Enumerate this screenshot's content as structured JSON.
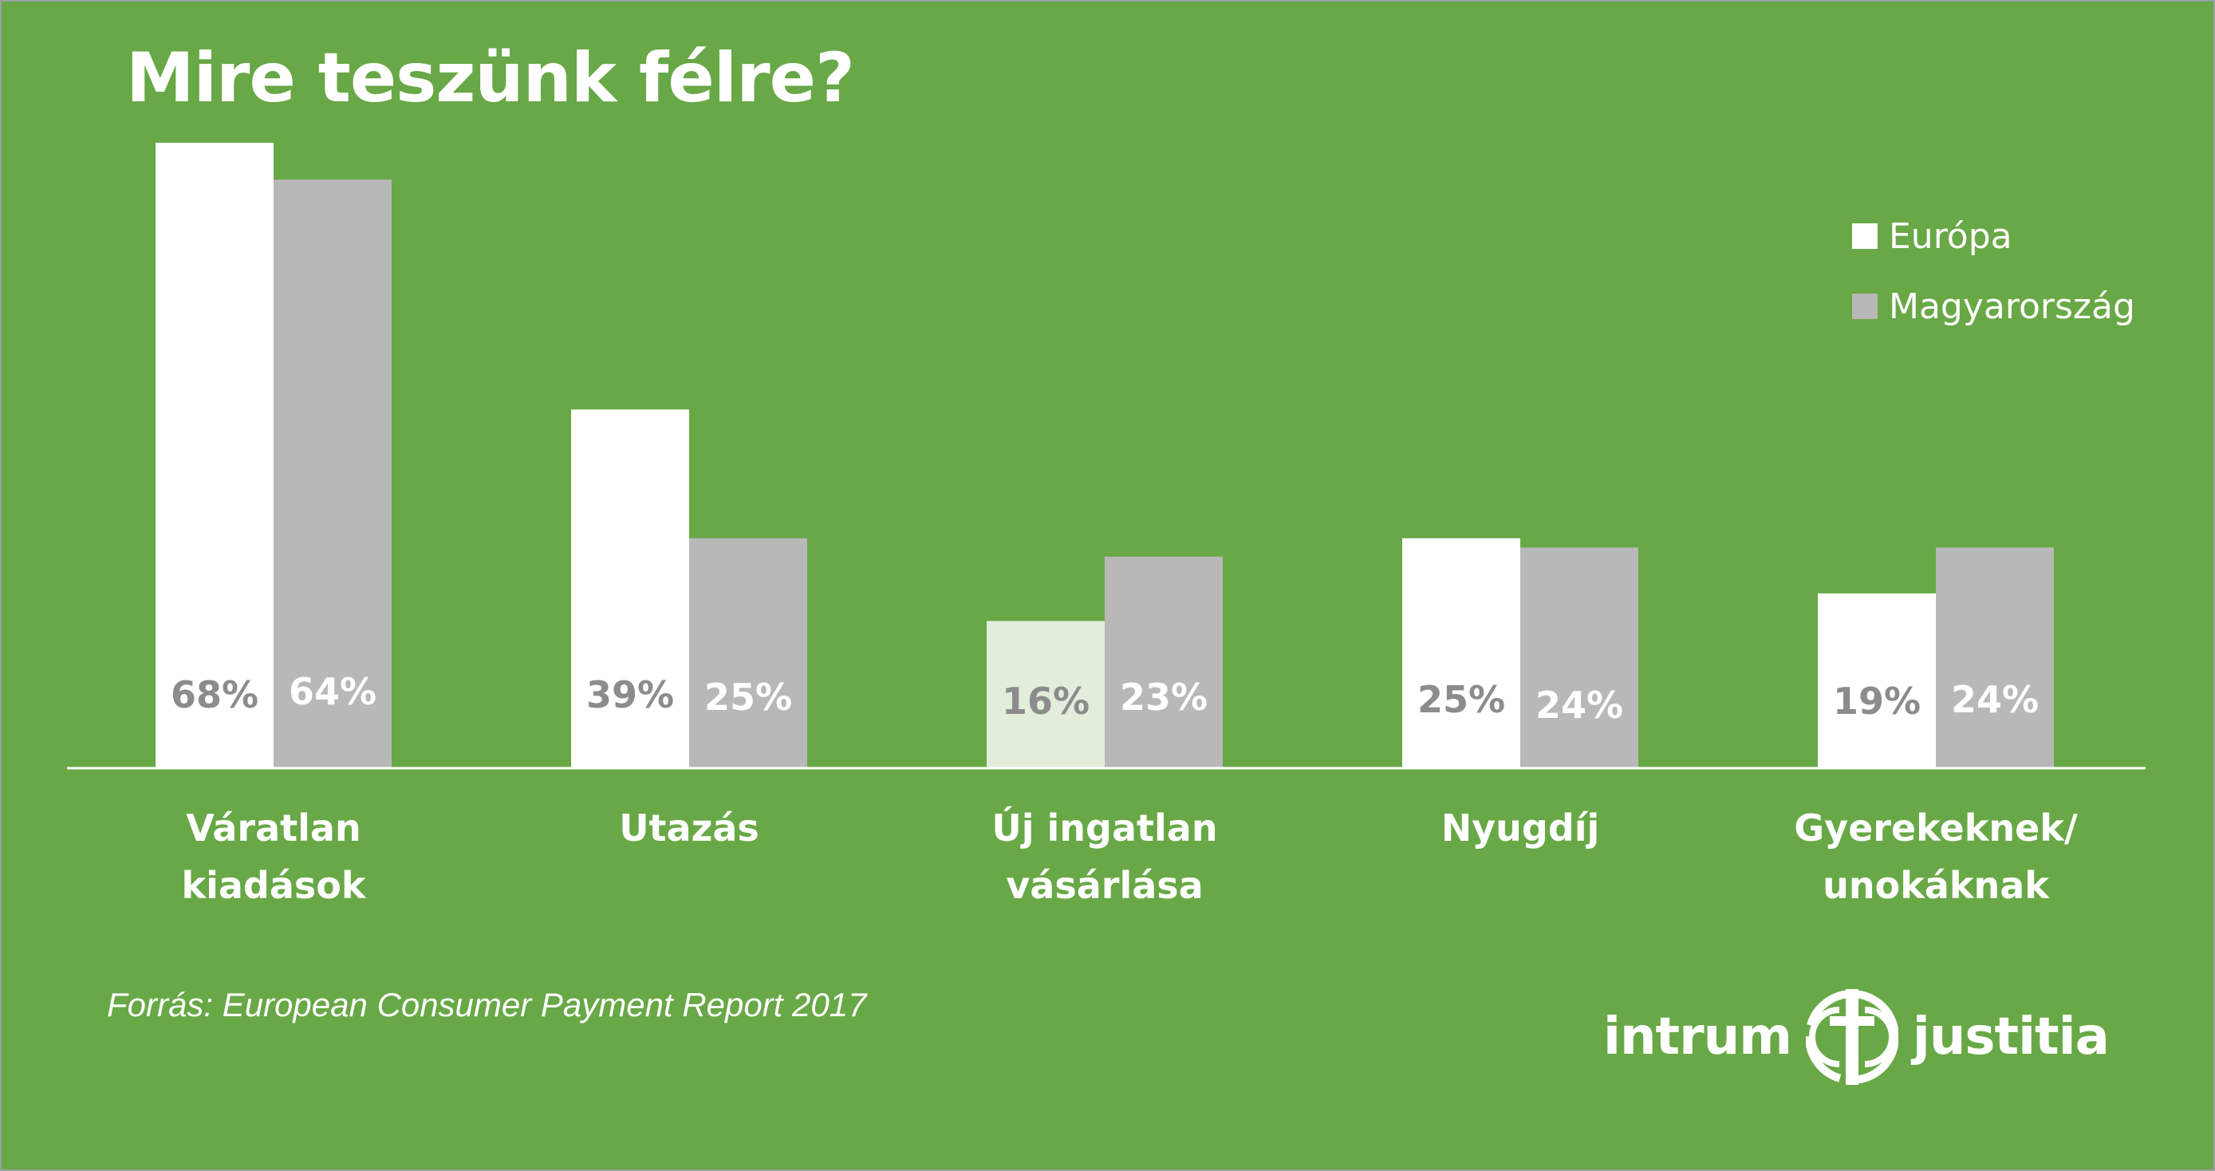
{
  "title": "Mire teszünk félre?",
  "source": "Forrás: European Consumer Payment Report 2017",
  "logo": {
    "left_word": "intrum",
    "right_word": "justitia",
    "icon": "intrum-justitia-logo-icon"
  },
  "colors": {
    "background": "#68a846",
    "europe": "#ffffff",
    "europe_highlight": "#e3eddc",
    "hungary": "#b8b8b8",
    "label_on_white": "#8c8c8c",
    "label_on_grey": "#ffffff"
  },
  "chart_data": {
    "type": "bar",
    "title": "Mire teszünk félre?",
    "categories": [
      "Váratlan kiadások",
      "Utazás",
      "Új ingatlan vásárlása",
      "Nyugdíj",
      "Gyerekeknek/ unokáknak"
    ],
    "category_lines": [
      [
        "Váratlan",
        "kiadások"
      ],
      [
        "Utazás"
      ],
      [
        "Új ingatlan",
        "vásárlása"
      ],
      [
        "Nyugdíj"
      ],
      [
        "Gyerekeknek/",
        "unokáknak"
      ]
    ],
    "series": [
      {
        "name": "Európa",
        "values": [
          68,
          39,
          16,
          25,
          19
        ],
        "labels": [
          "68%",
          "39%",
          "16%",
          "25%",
          "19%"
        ]
      },
      {
        "name": "Magyarország",
        "values": [
          64,
          25,
          23,
          24,
          24
        ],
        "labels": [
          "64%",
          "25%",
          "23%",
          "24%",
          "24%"
        ]
      }
    ],
    "highlighted_bar": {
      "series": 0,
      "category": 2
    },
    "xlabel": "",
    "ylabel": "",
    "unit": "%",
    "grid": false,
    "legend_position": "top-right"
  }
}
